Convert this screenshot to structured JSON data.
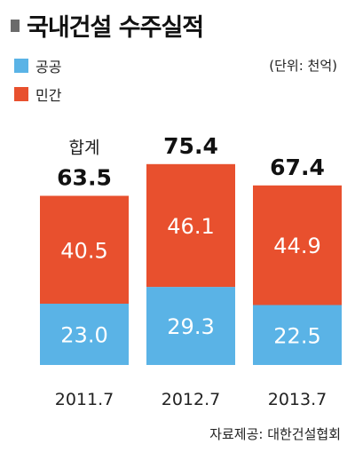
{
  "title": "국내건설 수주실적",
  "unit": "(단위: 천억)",
  "source": "자료제공: 대한건설협회",
  "legend": {
    "public": "공공",
    "private": "민간"
  },
  "colors": {
    "public": "#5ab3e6",
    "private": "#e8502e",
    "title_marker": "#6b6b6b"
  },
  "total_label": "합계",
  "chart_data": {
    "type": "bar",
    "stacked": true,
    "title": "국내건설 수주실적",
    "unit": "(단위: 천억)",
    "categories": [
      "2011.7",
      "2012.7",
      "2013.7"
    ],
    "series": [
      {
        "name": "공공",
        "values": [
          23.0,
          29.3,
          22.5
        ]
      },
      {
        "name": "민간",
        "values": [
          40.5,
          46.1,
          44.9
        ]
      }
    ],
    "value_labels": {
      "public": [
        "23.0",
        "29.3",
        "22.5"
      ],
      "private": [
        "40.5",
        "46.1",
        "44.9"
      ]
    },
    "totals": [
      "63.5",
      "75.4",
      "67.4"
    ],
    "legend_position": "top-left",
    "grid": false
  }
}
